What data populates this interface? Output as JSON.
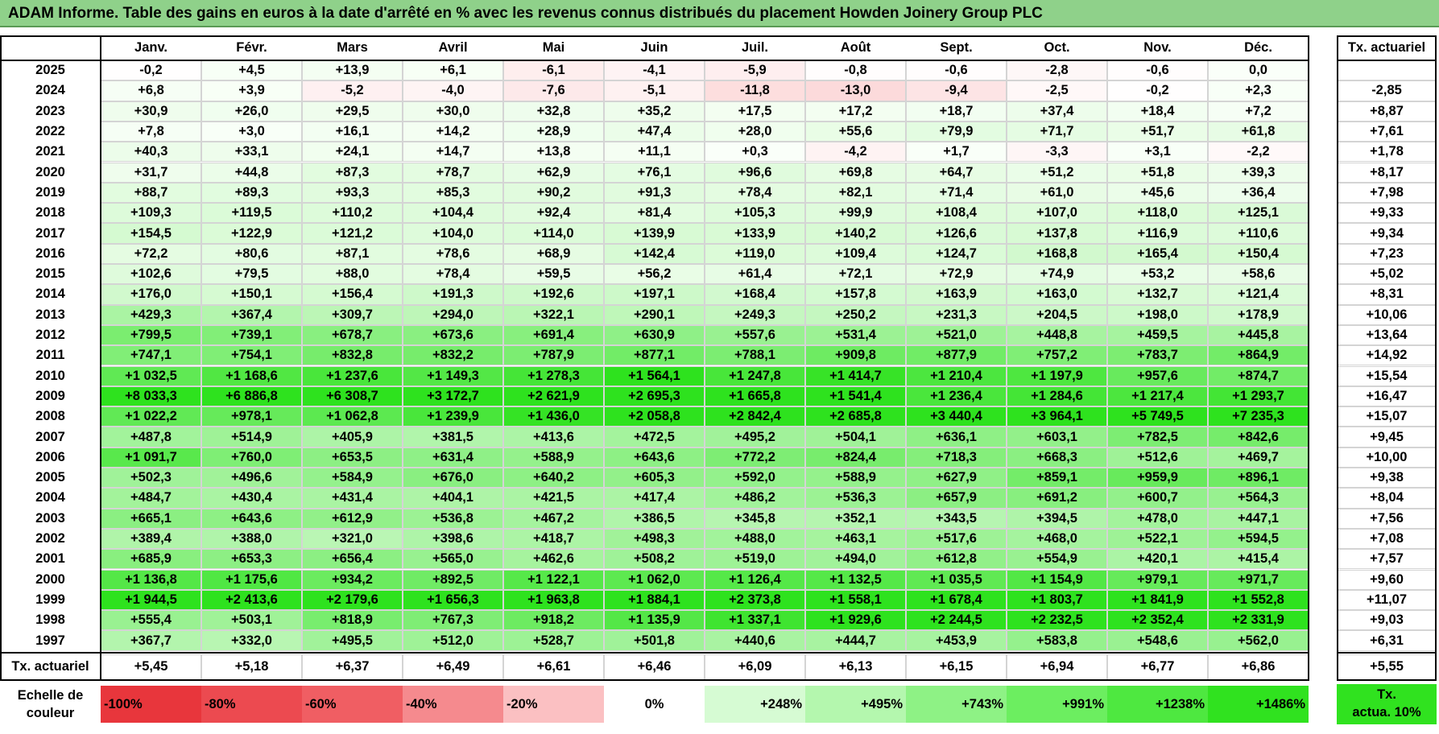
{
  "title": "ADAM Informe. Table des gains en euros à la date d'arrêté en % avec les revenus connus distribués du placement Howden Joinery Group PLC",
  "chart_data": {
    "type": "heatmap",
    "title": "ADAM Informe. Table des gains en euros à la date d'arrêté en % avec les revenus connus distribués du placement Howden Joinery Group PLC",
    "columns": [
      "Janv.",
      "Févr.",
      "Mars",
      "Avril",
      "Mai",
      "Juin",
      "Juil.",
      "Août",
      "Sept.",
      "Oct.",
      "Nov.",
      "Déc."
    ],
    "side_header": "Tx. actuariel",
    "rows": [
      {
        "year": "2025",
        "values": [
          "-0,2",
          "+4,5",
          "+13,9",
          "+6,1",
          "-6,1",
          "-4,1",
          "-5,9",
          "-0,8",
          "-0,6",
          "-2,8",
          "-0,6",
          "0,0"
        ],
        "rate": ""
      },
      {
        "year": "2024",
        "values": [
          "+6,8",
          "+3,9",
          "-5,2",
          "-4,0",
          "-7,6",
          "-5,1",
          "-11,8",
          "-13,0",
          "-9,4",
          "-2,5",
          "-0,2",
          "+2,3"
        ],
        "rate": "-2,85"
      },
      {
        "year": "2023",
        "values": [
          "+30,9",
          "+26,0",
          "+29,5",
          "+30,0",
          "+32,8",
          "+35,2",
          "+17,5",
          "+17,2",
          "+18,7",
          "+37,4",
          "+18,4",
          "+7,2"
        ],
        "rate": "+8,87"
      },
      {
        "year": "2022",
        "values": [
          "+7,8",
          "+3,0",
          "+16,1",
          "+14,2",
          "+28,9",
          "+47,4",
          "+28,0",
          "+55,6",
          "+79,9",
          "+71,7",
          "+51,7",
          "+61,8"
        ],
        "rate": "+7,61"
      },
      {
        "year": "2021",
        "values": [
          "+40,3",
          "+33,1",
          "+24,1",
          "+14,7",
          "+13,8",
          "+11,1",
          "+0,3",
          "-4,2",
          "+1,7",
          "-3,3",
          "+3,1",
          "-2,2"
        ],
        "rate": "+1,78"
      },
      {
        "year": "2020",
        "values": [
          "+31,7",
          "+44,8",
          "+87,3",
          "+78,7",
          "+62,9",
          "+76,1",
          "+96,6",
          "+69,8",
          "+64,7",
          "+51,2",
          "+51,8",
          "+39,3"
        ],
        "rate": "+8,17"
      },
      {
        "year": "2019",
        "values": [
          "+88,7",
          "+89,3",
          "+93,3",
          "+85,3",
          "+90,2",
          "+91,3",
          "+78,4",
          "+82,1",
          "+71,4",
          "+61,0",
          "+45,6",
          "+36,4"
        ],
        "rate": "+7,98"
      },
      {
        "year": "2018",
        "values": [
          "+109,3",
          "+119,5",
          "+110,2",
          "+104,4",
          "+92,4",
          "+81,4",
          "+105,3",
          "+99,9",
          "+108,4",
          "+107,0",
          "+118,0",
          "+125,1"
        ],
        "rate": "+9,33"
      },
      {
        "year": "2017",
        "values": [
          "+154,5",
          "+122,9",
          "+121,2",
          "+104,0",
          "+114,0",
          "+139,9",
          "+133,9",
          "+140,2",
          "+126,6",
          "+137,8",
          "+116,9",
          "+110,6"
        ],
        "rate": "+9,34"
      },
      {
        "year": "2016",
        "values": [
          "+72,2",
          "+80,6",
          "+87,1",
          "+78,6",
          "+68,9",
          "+142,4",
          "+119,0",
          "+109,4",
          "+124,7",
          "+168,8",
          "+165,4",
          "+150,4"
        ],
        "rate": "+7,23"
      },
      {
        "year": "2015",
        "values": [
          "+102,6",
          "+79,5",
          "+88,0",
          "+78,4",
          "+59,5",
          "+56,2",
          "+61,4",
          "+72,1",
          "+72,9",
          "+74,9",
          "+53,2",
          "+58,6"
        ],
        "rate": "+5,02"
      },
      {
        "year": "2014",
        "values": [
          "+176,0",
          "+150,1",
          "+156,4",
          "+191,3",
          "+192,6",
          "+197,1",
          "+168,4",
          "+157,8",
          "+163,9",
          "+163,0",
          "+132,7",
          "+121,4"
        ],
        "rate": "+8,31"
      },
      {
        "year": "2013",
        "values": [
          "+429,3",
          "+367,4",
          "+309,7",
          "+294,0",
          "+322,1",
          "+290,1",
          "+249,3",
          "+250,2",
          "+231,3",
          "+204,5",
          "+198,0",
          "+178,9"
        ],
        "rate": "+10,06"
      },
      {
        "year": "2012",
        "values": [
          "+799,5",
          "+739,1",
          "+678,7",
          "+673,6",
          "+691,4",
          "+630,9",
          "+557,6",
          "+531,4",
          "+521,0",
          "+448,8",
          "+459,5",
          "+445,8"
        ],
        "rate": "+13,64"
      },
      {
        "year": "2011",
        "values": [
          "+747,1",
          "+754,1",
          "+832,8",
          "+832,2",
          "+787,9",
          "+877,1",
          "+788,1",
          "+909,8",
          "+877,9",
          "+757,2",
          "+783,7",
          "+864,9"
        ],
        "rate": "+14,92"
      },
      {
        "year": "2010",
        "values": [
          "+1 032,5",
          "+1 168,6",
          "+1 237,6",
          "+1 149,3",
          "+1 278,3",
          "+1 564,1",
          "+1 247,8",
          "+1 414,7",
          "+1 210,4",
          "+1 197,9",
          "+957,6",
          "+874,7"
        ],
        "rate": "+15,54"
      },
      {
        "year": "2009",
        "values": [
          "+8 033,3",
          "+6 886,8",
          "+6 308,7",
          "+3 172,7",
          "+2 621,9",
          "+2 695,3",
          "+1 665,8",
          "+1 541,4",
          "+1 236,4",
          "+1 284,6",
          "+1 217,4",
          "+1 293,7"
        ],
        "rate": "+16,47"
      },
      {
        "year": "2008",
        "values": [
          "+1 022,2",
          "+978,1",
          "+1 062,8",
          "+1 239,9",
          "+1 436,0",
          "+2 058,8",
          "+2 842,4",
          "+2 685,8",
          "+3 440,4",
          "+3 964,1",
          "+5 749,5",
          "+7 235,3"
        ],
        "rate": "+15,07"
      },
      {
        "year": "2007",
        "values": [
          "+487,8",
          "+514,9",
          "+405,9",
          "+381,5",
          "+413,6",
          "+472,5",
          "+495,2",
          "+504,1",
          "+636,1",
          "+603,1",
          "+782,5",
          "+842,6"
        ],
        "rate": "+9,45"
      },
      {
        "year": "2006",
        "values": [
          "+1 091,7",
          "+760,0",
          "+653,5",
          "+631,4",
          "+588,9",
          "+643,6",
          "+772,2",
          "+824,4",
          "+718,3",
          "+668,3",
          "+512,6",
          "+469,7"
        ],
        "rate": "+10,00"
      },
      {
        "year": "2005",
        "values": [
          "+502,3",
          "+496,6",
          "+584,9",
          "+676,0",
          "+640,2",
          "+605,3",
          "+592,0",
          "+588,9",
          "+627,9",
          "+859,1",
          "+959,9",
          "+896,1"
        ],
        "rate": "+9,38"
      },
      {
        "year": "2004",
        "values": [
          "+484,7",
          "+430,4",
          "+431,4",
          "+404,1",
          "+421,5",
          "+417,4",
          "+486,2",
          "+536,3",
          "+657,9",
          "+691,2",
          "+600,7",
          "+564,3"
        ],
        "rate": "+8,04"
      },
      {
        "year": "2003",
        "values": [
          "+665,1",
          "+643,6",
          "+612,9",
          "+536,8",
          "+467,2",
          "+386,5",
          "+345,8",
          "+352,1",
          "+343,5",
          "+394,5",
          "+478,0",
          "+447,1"
        ],
        "rate": "+7,56"
      },
      {
        "year": "2002",
        "values": [
          "+389,4",
          "+388,0",
          "+321,0",
          "+398,6",
          "+418,7",
          "+498,3",
          "+488,0",
          "+463,1",
          "+517,6",
          "+468,0",
          "+522,1",
          "+594,5"
        ],
        "rate": "+7,08"
      },
      {
        "year": "2001",
        "values": [
          "+685,9",
          "+653,3",
          "+656,4",
          "+565,0",
          "+462,6",
          "+508,2",
          "+519,0",
          "+494,0",
          "+612,8",
          "+554,9",
          "+420,1",
          "+415,4"
        ],
        "rate": "+7,57"
      },
      {
        "year": "2000",
        "values": [
          "+1 136,8",
          "+1 175,6",
          "+934,2",
          "+892,5",
          "+1 122,1",
          "+1 062,0",
          "+1 126,4",
          "+1 132,5",
          "+1 035,5",
          "+1 154,9",
          "+979,1",
          "+971,7"
        ],
        "rate": "+9,60"
      },
      {
        "year": "1999",
        "values": [
          "+1 944,5",
          "+2 413,6",
          "+2 179,6",
          "+1 656,3",
          "+1 963,8",
          "+1 884,1",
          "+2 373,8",
          "+1 558,1",
          "+1 678,4",
          "+1 803,7",
          "+1 841,9",
          "+1 552,8"
        ],
        "rate": "+11,07"
      },
      {
        "year": "1998",
        "values": [
          "+555,4",
          "+503,1",
          "+818,9",
          "+767,3",
          "+918,2",
          "+1 135,9",
          "+1 337,1",
          "+1 929,6",
          "+2 244,5",
          "+2 232,5",
          "+2 352,4",
          "+2 331,9"
        ],
        "rate": "+9,03"
      },
      {
        "year": "1997",
        "values": [
          "+367,7",
          "+332,0",
          "+495,5",
          "+512,0",
          "+528,7",
          "+501,8",
          "+440,6",
          "+444,7",
          "+453,9",
          "+583,8",
          "+548,6",
          "+562,0"
        ],
        "rate": "+6,31"
      }
    ],
    "footer": {
      "label": "Tx. actuariel",
      "values": [
        "+5,45",
        "+5,18",
        "+6,37",
        "+6,49",
        "+6,61",
        "+6,46",
        "+6,09",
        "+6,13",
        "+6,15",
        "+6,94",
        "+6,77",
        "+6,86"
      ],
      "rate": "+5,55"
    },
    "color_scale": {
      "label_line1": "Echelle de",
      "label_line2": "couleur",
      "stops": [
        {
          "label": "-100%",
          "color": "#e8363c"
        },
        {
          "label": "-80%",
          "color": "#ec4a50"
        },
        {
          "label": "-60%",
          "color": "#f05e63"
        },
        {
          "label": "-40%",
          "color": "#f58a8e"
        },
        {
          "label": "-20%",
          "color": "#fbc0c2"
        },
        {
          "label": "0%",
          "color": "#ffffff"
        },
        {
          "label": "+248%",
          "color": "#d6fbd3"
        },
        {
          "label": "+495%",
          "color": "#b4f7ae"
        },
        {
          "label": "+743%",
          "color": "#8ef285"
        },
        {
          "label": "+991%",
          "color": "#6cee60"
        },
        {
          "label": "+1238%",
          "color": "#4ee840"
        },
        {
          "label": "+1486%",
          "color": "#30e21f"
        }
      ],
      "rate_label_line1": "Tx.",
      "rate_label_line2": "actua. 10%",
      "rate_color": "#30e21f"
    }
  }
}
